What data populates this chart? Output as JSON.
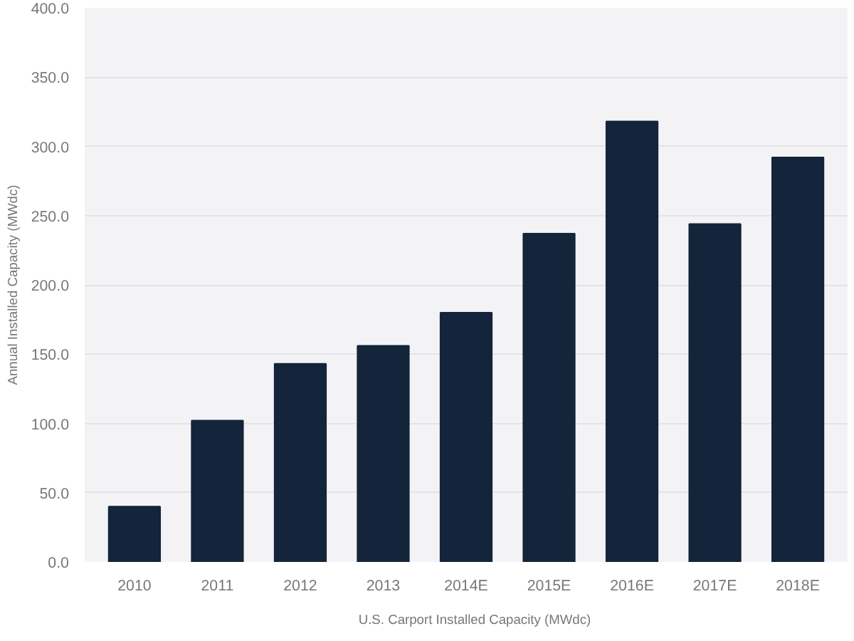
{
  "chart_data": {
    "type": "bar",
    "ylabel": "Annual Installed Capacity (MWdc)",
    "categories": [
      "2010",
      "2011",
      "2012",
      "2013",
      "2014E",
      "2015E",
      "2016E",
      "2017E",
      "2018E"
    ],
    "series": [
      {
        "name": "U.S. Carport Installed Capacity (MWdc)",
        "color": "#14243a",
        "values": [
          40,
          102,
          143,
          156,
          180,
          237,
          318,
          244,
          292
        ]
      }
    ],
    "ylim": [
      0,
      400
    ],
    "yticks": [
      {
        "value": 0,
        "label": "0.0"
      },
      {
        "value": 50,
        "label": "50.0"
      },
      {
        "value": 100,
        "label": "100.0"
      },
      {
        "value": 150,
        "label": "150.0"
      },
      {
        "value": 200,
        "label": "200.0"
      },
      {
        "value": 250,
        "label": "250.0"
      },
      {
        "value": 300,
        "label": "300.0"
      },
      {
        "value": 350,
        "label": "350.0"
      },
      {
        "value": 400,
        "label": "400.0"
      }
    ],
    "grid": "y",
    "legend": "bottom"
  }
}
